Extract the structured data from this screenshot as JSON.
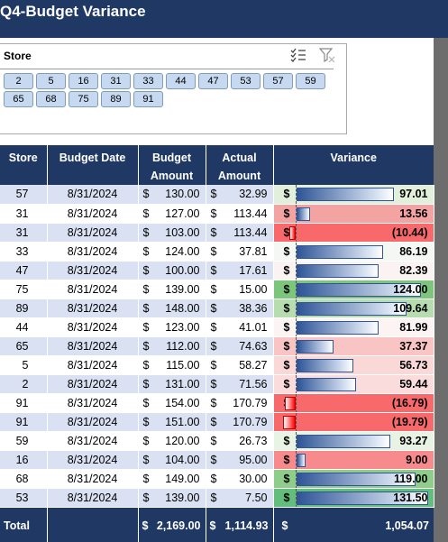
{
  "title": "Q4-Budget Variance",
  "slicer": {
    "label": "Store",
    "items": [
      "2",
      "5",
      "16",
      "31",
      "33",
      "44",
      "47",
      "53",
      "57",
      "59",
      "65",
      "68",
      "75",
      "89",
      "91"
    ]
  },
  "table": {
    "headers": {
      "store": "Store",
      "date": "Budget Date",
      "budget_line1": "Budget",
      "budget_line2": "Amount",
      "actual_line1": "Actual",
      "actual_line2": "Amount",
      "variance": "Variance"
    },
    "currency": "$",
    "rows": [
      {
        "store": "57",
        "date": "8/31/2024",
        "budget": "130.00",
        "actual": "32.99",
        "variance": "97.01",
        "v": 97.01,
        "fill": "#e2efda"
      },
      {
        "store": "31",
        "date": "8/31/2024",
        "budget": "127.00",
        "actual": "113.44",
        "variance": "13.56",
        "v": 13.56,
        "fill": "#f4a3a3"
      },
      {
        "store": "31",
        "date": "8/31/2024",
        "budget": "103.00",
        "actual": "113.44",
        "variance": "(10.44)",
        "v": -10.44,
        "fill": "#f8696b"
      },
      {
        "store": "33",
        "date": "8/31/2024",
        "budget": "124.00",
        "actual": "37.81",
        "variance": "86.19",
        "v": 86.19,
        "fill": "#f4f8f2"
      },
      {
        "store": "47",
        "date": "8/31/2024",
        "budget": "100.00",
        "actual": "17.61",
        "variance": "82.39",
        "v": 82.39,
        "fill": "#fbf2f2"
      },
      {
        "store": "75",
        "date": "8/31/2024",
        "budget": "139.00",
        "actual": "15.00",
        "variance": "124.00",
        "v": 124.0,
        "fill": "#7cc67c"
      },
      {
        "store": "89",
        "date": "8/31/2024",
        "budget": "148.00",
        "actual": "38.36",
        "variance": "109.64",
        "v": 109.64,
        "fill": "#b6dcb0"
      },
      {
        "store": "44",
        "date": "8/31/2024",
        "budget": "123.00",
        "actual": "41.01",
        "variance": "81.99",
        "v": 81.99,
        "fill": "#fcf3f3"
      },
      {
        "store": "65",
        "date": "8/31/2024",
        "budget": "112.00",
        "actual": "74.63",
        "variance": "37.37",
        "v": 37.37,
        "fill": "#f8c4c4"
      },
      {
        "store": "5",
        "date": "8/31/2024",
        "budget": "115.00",
        "actual": "58.27",
        "variance": "56.73",
        "v": 56.73,
        "fill": "#fad8d8"
      },
      {
        "store": "2",
        "date": "8/31/2024",
        "budget": "131.00",
        "actual": "71.56",
        "variance": "59.44",
        "v": 59.44,
        "fill": "#fbdcdc"
      },
      {
        "store": "91",
        "date": "8/31/2024",
        "budget": "154.00",
        "actual": "170.79",
        "variance": "(16.79)",
        "v": -16.79,
        "fill": "#f8696b"
      },
      {
        "store": "91",
        "date": "8/31/2024",
        "budget": "151.00",
        "actual": "170.79",
        "variance": "(19.79)",
        "v": -19.79,
        "fill": "#f8696b"
      },
      {
        "store": "59",
        "date": "8/31/2024",
        "budget": "120.00",
        "actual": "26.73",
        "variance": "93.27",
        "v": 93.27,
        "fill": "#e9f3e4"
      },
      {
        "store": "16",
        "date": "8/31/2024",
        "budget": "104.00",
        "actual": "95.00",
        "variance": "9.00",
        "v": 9.0,
        "fill": "#f68a8c"
      },
      {
        "store": "68",
        "date": "8/31/2024",
        "budget": "149.00",
        "actual": "30.00",
        "variance": "119.00",
        "v": 119.0,
        "fill": "#8fcd8b"
      },
      {
        "store": "53",
        "date": "8/31/2024",
        "budget": "139.00",
        "actual": "7.50",
        "variance": "131.50",
        "v": 131.5,
        "fill": "#63be7b"
      }
    ],
    "total": {
      "label": "Total",
      "budget": "2,169.00",
      "actual": "1,114.93",
      "variance": "1,054.07"
    }
  }
}
